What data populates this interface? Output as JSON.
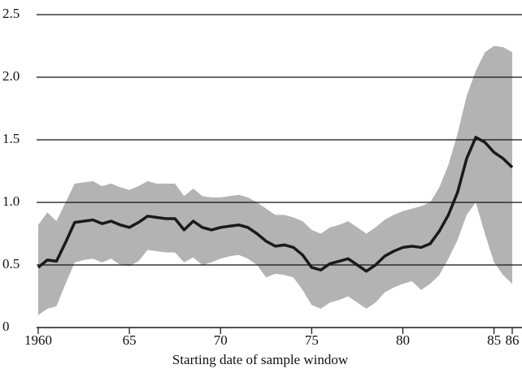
{
  "chart_data": {
    "type": "band-line",
    "xlabel": "Starting date of sample window",
    "x": [
      1960,
      1960.5,
      1961,
      1961.5,
      1962,
      1962.5,
      1963,
      1963.5,
      1964,
      1964.5,
      1965,
      1965.5,
      1966,
      1966.5,
      1967,
      1967.5,
      1968,
      1968.5,
      1969,
      1969.5,
      1970,
      1970.5,
      1971,
      1971.5,
      1972,
      1972.5,
      1973,
      1973.5,
      1974,
      1974.5,
      1975,
      1975.5,
      1976,
      1976.5,
      1977,
      1977.5,
      1978,
      1978.5,
      1979,
      1979.5,
      1980,
      1980.5,
      1981,
      1981.5,
      1982,
      1982.5,
      1983,
      1983.5,
      1984,
      1984.5,
      1985,
      1985.5,
      1986
    ],
    "values": [
      0.48,
      0.54,
      0.53,
      0.68,
      0.84,
      0.85,
      0.86,
      0.83,
      0.85,
      0.82,
      0.8,
      0.84,
      0.89,
      0.88,
      0.87,
      0.87,
      0.78,
      0.85,
      0.8,
      0.78,
      0.8,
      0.81,
      0.82,
      0.8,
      0.75,
      0.69,
      0.65,
      0.66,
      0.64,
      0.58,
      0.48,
      0.46,
      0.51,
      0.53,
      0.55,
      0.5,
      0.45,
      0.5,
      0.57,
      0.61,
      0.64,
      0.65,
      0.64,
      0.67,
      0.77,
      0.9,
      1.08,
      1.35,
      1.52,
      1.48,
      1.4,
      1.35,
      1.28
    ],
    "lower": [
      0.1,
      0.15,
      0.17,
      0.35,
      0.52,
      0.54,
      0.55,
      0.52,
      0.55,
      0.5,
      0.49,
      0.53,
      0.62,
      0.61,
      0.6,
      0.6,
      0.52,
      0.56,
      0.5,
      0.52,
      0.55,
      0.57,
      0.58,
      0.55,
      0.5,
      0.4,
      0.43,
      0.42,
      0.4,
      0.3,
      0.18,
      0.15,
      0.2,
      0.22,
      0.25,
      0.2,
      0.15,
      0.2,
      0.28,
      0.32,
      0.35,
      0.37,
      0.3,
      0.35,
      0.42,
      0.55,
      0.7,
      0.9,
      1.0,
      0.75,
      0.52,
      0.42,
      0.35
    ],
    "upper": [
      0.82,
      0.92,
      0.85,
      1.0,
      1.15,
      1.16,
      1.17,
      1.13,
      1.15,
      1.12,
      1.1,
      1.13,
      1.17,
      1.15,
      1.15,
      1.15,
      1.05,
      1.11,
      1.05,
      1.04,
      1.04,
      1.05,
      1.06,
      1.04,
      1.0,
      0.95,
      0.9,
      0.9,
      0.88,
      0.85,
      0.78,
      0.75,
      0.8,
      0.82,
      0.85,
      0.8,
      0.75,
      0.8,
      0.86,
      0.9,
      0.93,
      0.95,
      0.97,
      1.0,
      1.12,
      1.3,
      1.55,
      1.85,
      2.05,
      2.2,
      2.25,
      2.24,
      2.2
    ],
    "color": "#1a1a1a",
    "band_color": "#b3b3b3",
    "xlim": [
      1960,
      1986
    ],
    "xticks": [
      {
        "value": 1960,
        "label": "1960"
      },
      {
        "value": 1965,
        "label": "65"
      },
      {
        "value": 1970,
        "label": "70"
      },
      {
        "value": 1975,
        "label": "75"
      },
      {
        "value": 1980,
        "label": "80"
      },
      {
        "value": 1985,
        "label": "85"
      },
      {
        "value": 1986,
        "label": "86"
      }
    ],
    "ylim": [
      0,
      2.5
    ],
    "yticks": [
      0,
      0.5,
      {
        "value": 1,
        "label": "1.0"
      },
      1.5,
      {
        "value": 2,
        "label": "2.0"
      },
      2.5
    ],
    "grid": true
  }
}
